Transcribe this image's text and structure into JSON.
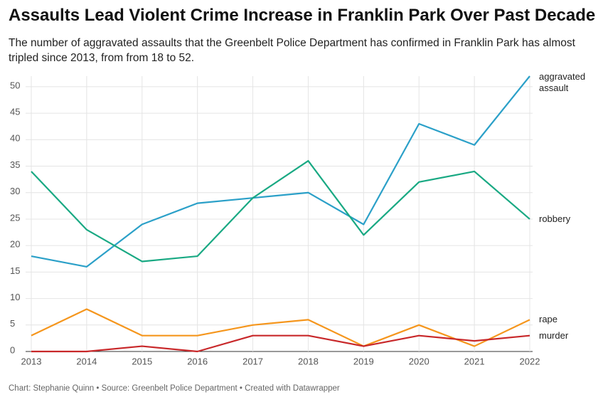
{
  "chart_data": {
    "type": "line",
    "title": "Assaults Lead Violent Crime Increase in Franklin Park Over Past Decade",
    "subtitle": "The number of aggravated assaults that the Greenbelt Police Department has confirmed in Franklin Park has almost tripled since 2013, from from 18 to 52.",
    "footer": "Chart: Stephanie Quinn • Source: Greenbelt Police Department • Created with Datawrapper",
    "x": [
      2013,
      2014,
      2015,
      2016,
      2017,
      2018,
      2019,
      2020,
      2021,
      2022
    ],
    "xlim": [
      2013,
      2022
    ],
    "xticks": [
      2013,
      2014,
      2015,
      2016,
      2017,
      2018,
      2019,
      2020,
      2021,
      2022
    ],
    "ylim": [
      0,
      52
    ],
    "yticks": [
      0,
      5,
      10,
      15,
      20,
      25,
      30,
      35,
      40,
      45,
      50
    ],
    "grid": true,
    "series": [
      {
        "name": "aggravated assault",
        "color": "#2ba0c8",
        "values": [
          18,
          16,
          24,
          28,
          29,
          30,
          24,
          43,
          39,
          52
        ]
      },
      {
        "name": "robbery",
        "color": "#19a983",
        "values": [
          34,
          23,
          17,
          18,
          29,
          36,
          22,
          32,
          34,
          25
        ]
      },
      {
        "name": "rape",
        "color": "#f5961d",
        "values": [
          3,
          8,
          3,
          3,
          5,
          6,
          1,
          5,
          1,
          6
        ]
      },
      {
        "name": "murder",
        "color": "#c8282a",
        "values": [
          0,
          0,
          1,
          0,
          3,
          3,
          1,
          3,
          2,
          3
        ]
      }
    ]
  }
}
